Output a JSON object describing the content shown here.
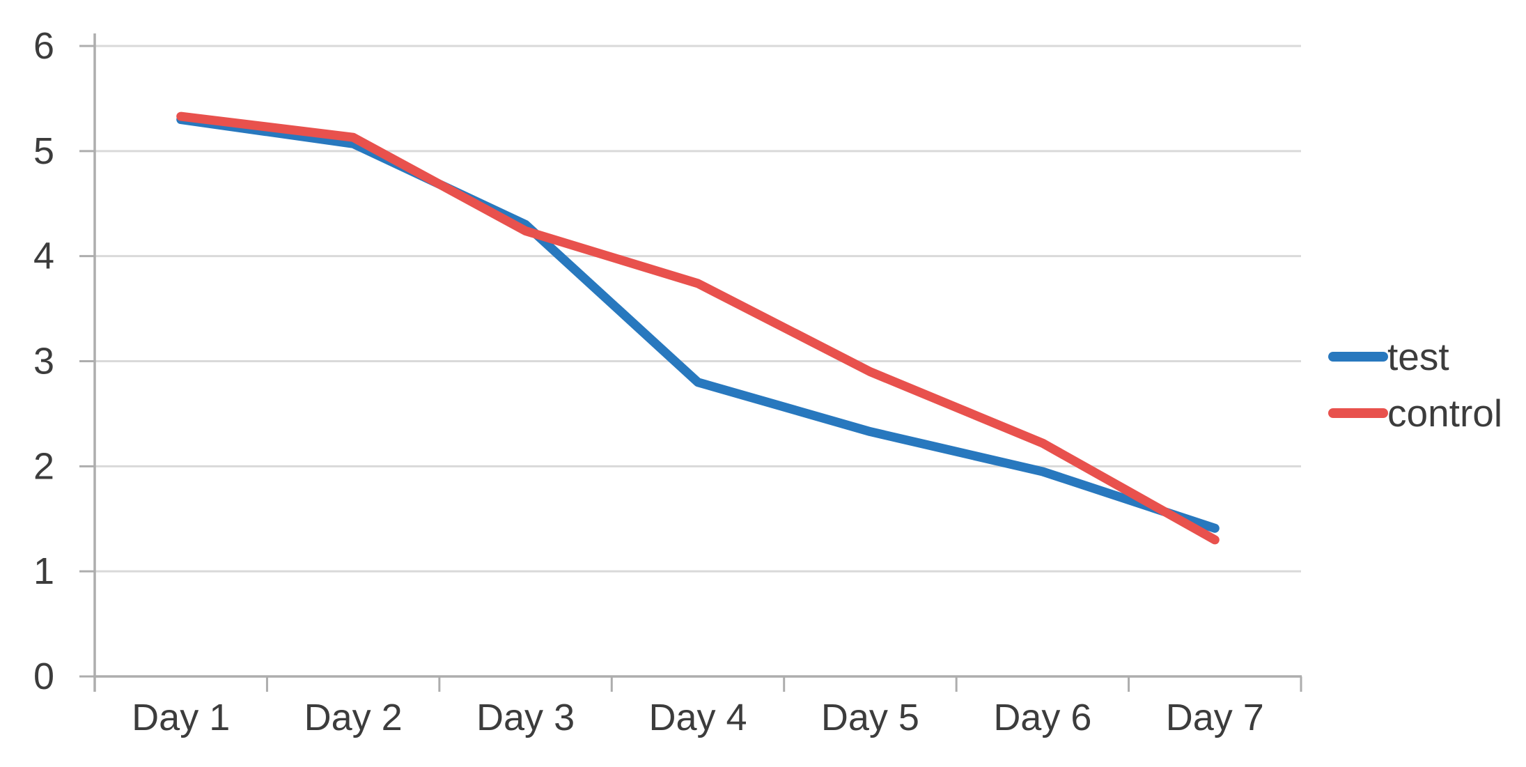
{
  "chart_data": {
    "type": "line",
    "title": "",
    "xlabel": "",
    "ylabel": "",
    "categories": [
      "Day 1",
      "Day 2",
      "Day 3",
      "Day 4",
      "Day 5",
      "Day 6",
      "Day 7"
    ],
    "series": [
      {
        "name": "test",
        "color": "#2878be",
        "values": [
          5.3,
          5.07,
          4.3,
          2.8,
          2.33,
          1.95,
          1.41
        ]
      },
      {
        "name": "control",
        "color": "#e8514d",
        "values": [
          5.33,
          5.13,
          4.24,
          3.74,
          2.9,
          2.22,
          1.3
        ]
      }
    ],
    "ylim": [
      0,
      6
    ],
    "yticks": [
      "6",
      "5",
      "4",
      "3",
      "2",
      "1",
      "0"
    ],
    "ytick_values": [
      6,
      5,
      4,
      3,
      2,
      1,
      0
    ],
    "grid": "horizontal-only",
    "legend_position": "right-middle",
    "line_style": "straight-rounded"
  },
  "colors": {
    "background": "#ffffff",
    "gridline": "#d9d9d9",
    "axis": "#adadad",
    "tick": "#adadad",
    "label_text": "#3c3c3c"
  }
}
